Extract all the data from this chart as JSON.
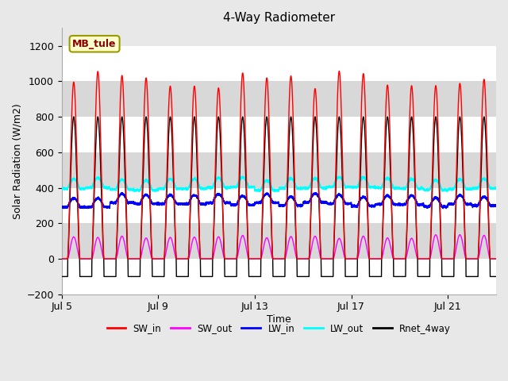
{
  "title": "4-Way Radiometer",
  "xlabel": "Time",
  "ylabel": "Solar Radiation (W/m2)",
  "ylim": [
    -200,
    1300
  ],
  "yticks": [
    -200,
    0,
    200,
    400,
    600,
    800,
    1000,
    1200
  ],
  "xtick_labels": [
    "Jul 5",
    "Jul 9",
    "Jul 13",
    "Jul 17",
    "Jul 21"
  ],
  "station_label": "MB_tule",
  "background_color": "#e8e8e8",
  "plot_bg_color": "#e8e8e8",
  "band_color_light": "#ffffff",
  "band_color_dark": "#d8d8d8",
  "colors": {
    "SW_in": "#ff0000",
    "SW_out": "#ff00ff",
    "LW_in": "#0000ff",
    "LW_out": "#00ffff",
    "Rnet_4way": "#000000"
  },
  "n_days": 18,
  "SW_in_peak": 1040,
  "SW_out_peak": 130,
  "LW_in_base": 300,
  "LW_in_day_bump": 50,
  "LW_out_base": 390,
  "LW_out_day_bump": 55,
  "Rnet_night": -100,
  "Rnet_day_peak": 800,
  "points_per_day": 480
}
